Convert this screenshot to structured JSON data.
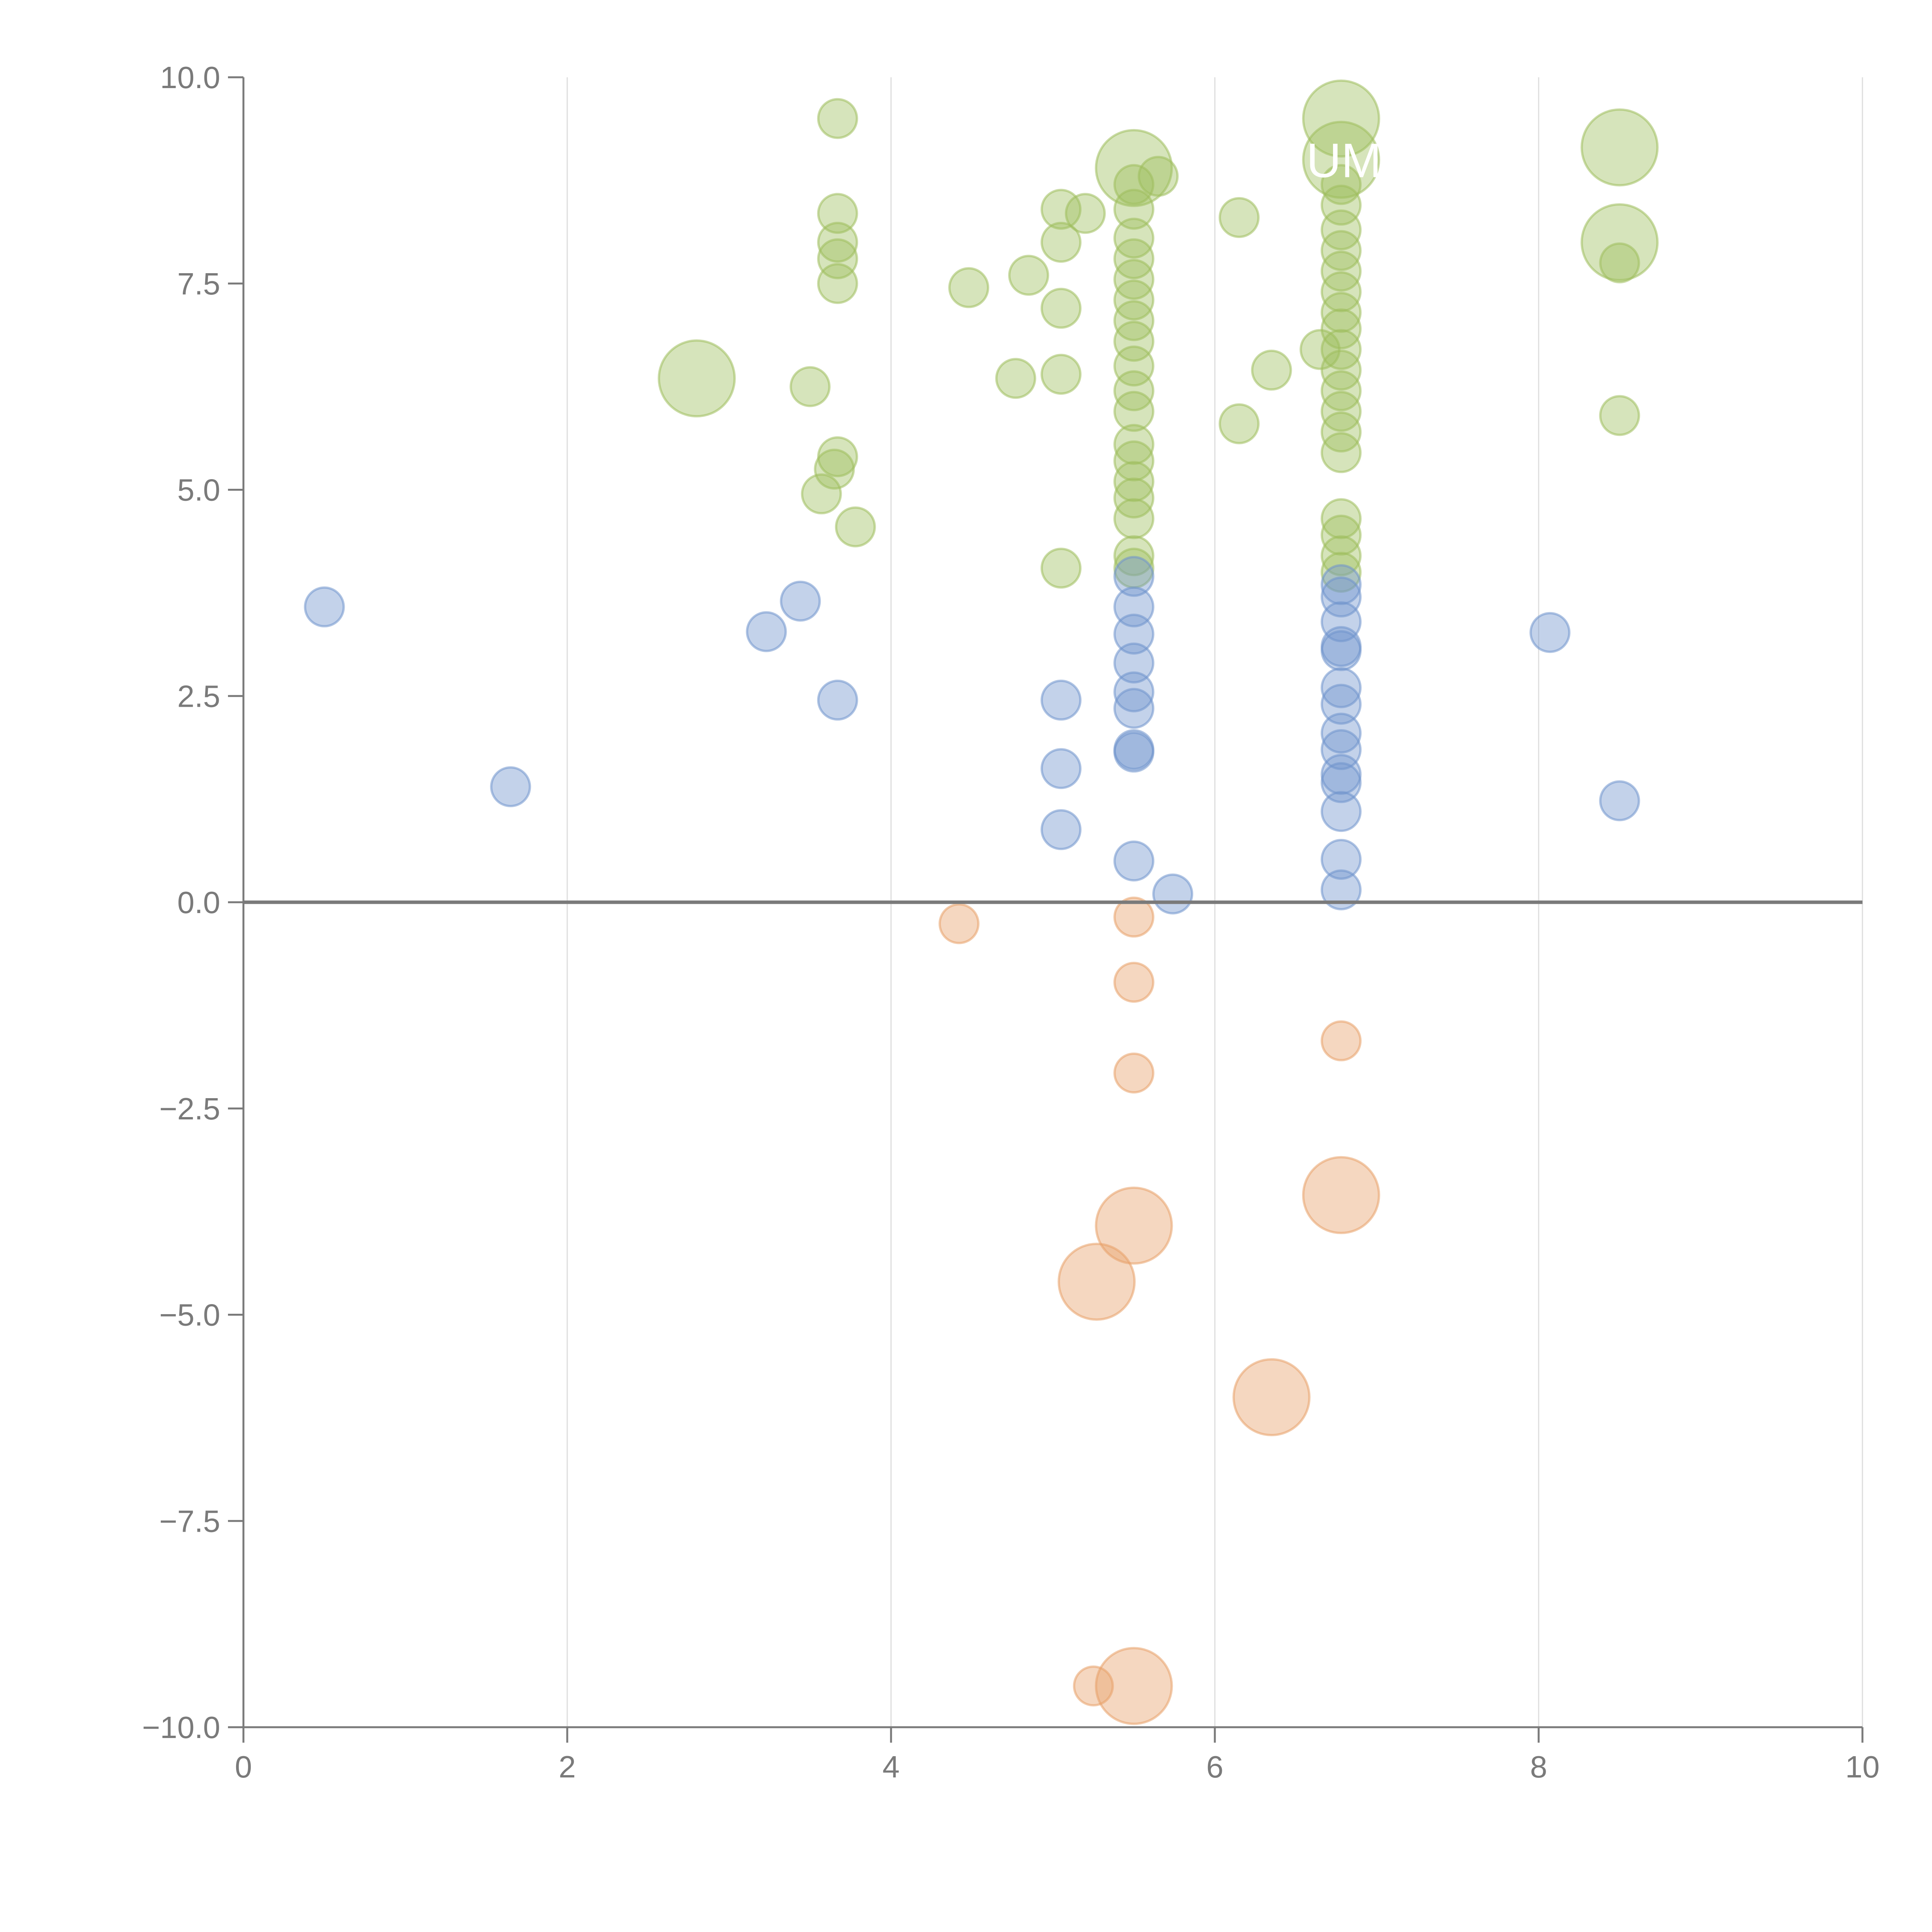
{
  "chart_data": {
    "type": "scatter",
    "title": "",
    "xlabel": "",
    "ylabel": "",
    "xlim": [
      0,
      10
    ],
    "ylim": [
      -10,
      10
    ],
    "x_ticks": [
      "0",
      "2",
      "4",
      "6",
      "8",
      "10"
    ],
    "y_ticks": [
      "10.0",
      "7.5",
      "5.0",
      "2.5",
      "0.0",
      "−2.5",
      "−5.0",
      "−7.5",
      "−10.0"
    ],
    "grid": "vertical",
    "zero_line": true,
    "colors": {
      "green": "#9ebe5c",
      "blue": "#6f94cc",
      "orange": "#e8a068",
      "axis": "#7a7a7a",
      "grid": "#dddddd"
    },
    "annotations": [
      {
        "text": "UM"
      }
    ],
    "series": [
      {
        "name": "green",
        "color": "#9ebe5c",
        "points": [
          [
            3.67,
            9.5,
            1
          ],
          [
            5.5,
            8.9,
            3
          ],
          [
            5.65,
            8.8,
            1
          ],
          [
            6.78,
            9.5,
            3
          ],
          [
            6.78,
            9.0,
            3
          ],
          [
            8.5,
            9.15,
            3
          ],
          [
            8.5,
            8.0,
            3
          ],
          [
            8.5,
            7.75,
            1
          ],
          [
            3.67,
            8.35,
            1
          ],
          [
            3.67,
            8.0,
            1
          ],
          [
            3.67,
            7.8,
            1
          ],
          [
            3.67,
            7.5,
            1
          ],
          [
            4.48,
            7.45,
            1
          ],
          [
            4.85,
            7.6,
            1
          ],
          [
            5.05,
            8.4,
            1
          ],
          [
            5.05,
            8.0,
            1
          ],
          [
            5.2,
            8.35,
            1
          ],
          [
            5.05,
            7.2,
            1
          ],
          [
            5.05,
            6.4,
            1
          ],
          [
            4.77,
            6.35,
            1
          ],
          [
            6.15,
            8.3,
            1
          ],
          [
            6.35,
            6.45,
            1
          ],
          [
            6.15,
            5.8,
            1
          ],
          [
            6.65,
            6.7,
            1
          ],
          [
            8.5,
            5.9,
            1
          ],
          [
            2.8,
            6.35,
            3
          ],
          [
            3.5,
            6.25,
            1
          ],
          [
            3.67,
            5.4,
            1
          ],
          [
            3.65,
            5.25,
            1
          ],
          [
            3.57,
            4.95,
            1
          ],
          [
            3.78,
            4.55,
            1
          ],
          [
            5.05,
            4.05,
            1
          ],
          [
            5.5,
            8.7,
            1
          ],
          [
            5.5,
            8.4,
            1
          ],
          [
            5.5,
            8.05,
            1
          ],
          [
            5.5,
            7.8,
            1
          ],
          [
            5.5,
            7.55,
            1
          ],
          [
            5.5,
            7.3,
            1
          ],
          [
            5.5,
            7.05,
            1
          ],
          [
            5.5,
            6.8,
            1
          ],
          [
            5.5,
            6.5,
            1
          ],
          [
            5.5,
            6.2,
            1
          ],
          [
            5.5,
            5.95,
            1
          ],
          [
            5.5,
            5.55,
            1
          ],
          [
            5.5,
            5.35,
            1
          ],
          [
            5.5,
            5.1,
            1
          ],
          [
            5.5,
            4.9,
            1
          ],
          [
            5.5,
            4.65,
            1
          ],
          [
            5.5,
            4.2,
            1
          ],
          [
            5.5,
            4.05,
            1
          ],
          [
            6.78,
            8.7,
            1
          ],
          [
            6.78,
            8.45,
            1
          ],
          [
            6.78,
            8.15,
            1
          ],
          [
            6.78,
            7.9,
            1
          ],
          [
            6.78,
            7.65,
            1
          ],
          [
            6.78,
            7.4,
            1
          ],
          [
            6.78,
            7.15,
            1
          ],
          [
            6.78,
            6.95,
            1
          ],
          [
            6.78,
            6.7,
            1
          ],
          [
            6.78,
            6.45,
            1
          ],
          [
            6.78,
            6.2,
            1
          ],
          [
            6.78,
            5.95,
            1
          ],
          [
            6.78,
            5.7,
            1
          ],
          [
            6.78,
            5.45,
            1
          ],
          [
            6.78,
            4.65,
            1
          ],
          [
            6.78,
            4.45,
            1
          ],
          [
            6.78,
            4.2,
            1
          ],
          [
            6.78,
            4.0,
            1
          ]
        ]
      },
      {
        "name": "blue",
        "color": "#6f94cc",
        "points": [
          [
            0.5,
            3.58,
            1
          ],
          [
            1.65,
            1.4,
            1
          ],
          [
            3.23,
            3.28,
            1
          ],
          [
            3.44,
            3.65,
            1
          ],
          [
            3.67,
            2.45,
            1
          ],
          [
            5.05,
            2.45,
            1
          ],
          [
            5.05,
            1.62,
            1
          ],
          [
            5.05,
            0.88,
            1
          ],
          [
            5.5,
            3.95,
            1
          ],
          [
            5.5,
            3.58,
            1
          ],
          [
            5.5,
            3.25,
            1
          ],
          [
            5.5,
            2.9,
            1
          ],
          [
            5.5,
            2.55,
            1
          ],
          [
            5.5,
            2.35,
            1
          ],
          [
            5.5,
            1.85,
            1
          ],
          [
            5.5,
            1.82,
            1
          ],
          [
            5.5,
            0.5,
            1
          ],
          [
            5.74,
            0.1,
            1
          ],
          [
            6.78,
            3.85,
            1
          ],
          [
            6.78,
            3.7,
            1
          ],
          [
            6.78,
            3.4,
            1
          ],
          [
            6.78,
            3.1,
            1
          ],
          [
            6.78,
            3.05,
            1
          ],
          [
            6.78,
            2.6,
            1
          ],
          [
            6.78,
            2.4,
            1
          ],
          [
            6.78,
            2.05,
            1
          ],
          [
            6.78,
            1.85,
            1
          ],
          [
            6.78,
            1.55,
            1
          ],
          [
            6.78,
            1.45,
            1
          ],
          [
            6.78,
            1.1,
            1
          ],
          [
            6.78,
            0.52,
            1
          ],
          [
            6.78,
            0.15,
            1
          ],
          [
            8.07,
            3.27,
            1
          ],
          [
            8.5,
            1.23,
            1
          ]
        ]
      },
      {
        "name": "orange",
        "color": "#e8a068",
        "points": [
          [
            4.42,
            -0.26,
            1
          ],
          [
            5.5,
            -0.18,
            1
          ],
          [
            5.5,
            -0.97,
            1
          ],
          [
            5.5,
            -2.07,
            1
          ],
          [
            6.78,
            -1.68,
            1
          ],
          [
            5.5,
            -3.92,
            3
          ],
          [
            5.27,
            -4.6,
            3
          ],
          [
            6.78,
            -3.55,
            3
          ],
          [
            6.35,
            -6.0,
            3
          ],
          [
            5.5,
            -9.5,
            3
          ],
          [
            5.25,
            -9.5,
            1
          ]
        ]
      }
    ]
  }
}
